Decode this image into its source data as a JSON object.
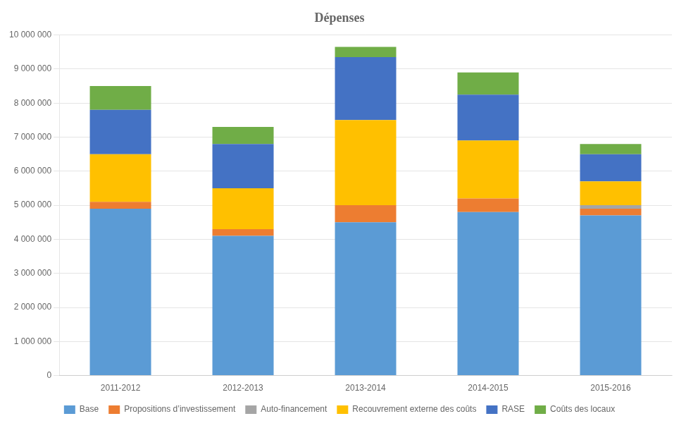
{
  "chart_data": {
    "type": "bar",
    "title": "Dépenses",
    "categories": [
      "2011-2012",
      "2012-2013",
      "2013-2014",
      "2014-2015",
      "2015-2016"
    ],
    "series": [
      {
        "name": "Base",
        "color": "#5B9BD5",
        "values": [
          4900000,
          4100000,
          4500000,
          4800000,
          4700000
        ]
      },
      {
        "name": "Propositions d’investissement",
        "color": "#ED7D31",
        "values": [
          200000,
          200000,
          500000,
          400000,
          200000
        ]
      },
      {
        "name": "Auto-financement",
        "color": "#A5A5A5",
        "values": [
          0,
          0,
          0,
          0,
          100000
        ]
      },
      {
        "name": "Recouvrement externe des coûts",
        "color": "#FFC000",
        "values": [
          1400000,
          1200000,
          2500000,
          1700000,
          700000
        ]
      },
      {
        "name": "RASE",
        "color": "#4472C4",
        "values": [
          1300000,
          1300000,
          1850000,
          1350000,
          800000
        ]
      },
      {
        "name": "Coûts des locaux",
        "color": "#70AD47",
        "values": [
          700000,
          500000,
          300000,
          650000,
          300000
        ]
      }
    ],
    "ylim": [
      0,
      10000000
    ],
    "yticks": [
      0,
      {
        "value": 1000000,
        "label": "1 000 000"
      },
      {
        "value": 2000000,
        "label": "2 000 000"
      },
      {
        "value": 3000000,
        "label": "3 000 000"
      },
      {
        "value": 4000000,
        "label": "4 000 000"
      },
      {
        "value": 5000000,
        "label": "5 000 000"
      },
      {
        "value": 6000000,
        "label": "6 000 000"
      },
      {
        "value": 7000000,
        "label": "7 000 000"
      },
      {
        "value": 8000000,
        "label": "8 000 000"
      },
      {
        "value": 9000000,
        "label": "9 000 000"
      },
      {
        "value": 10000000,
        "label": "10 000 000"
      }
    ],
    "stacked": true,
    "grid": true,
    "legend": "bottom"
  }
}
